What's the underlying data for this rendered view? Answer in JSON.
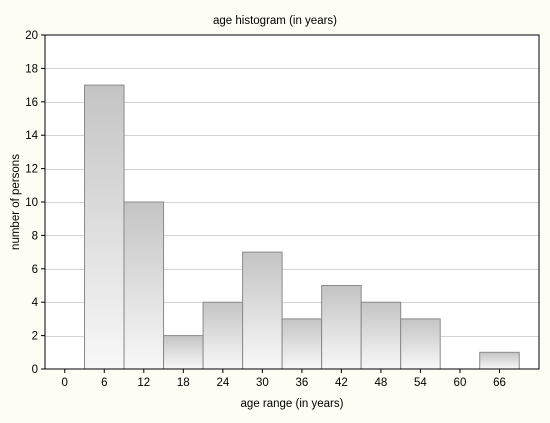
{
  "chart_data": {
    "type": "bar",
    "title": "age histogram (in years)",
    "xlabel": "age range (in years)",
    "ylabel": "number of persons",
    "bins": [
      {
        "start": 0,
        "end": 6
      },
      {
        "start": 6,
        "end": 12
      },
      {
        "start": 12,
        "end": 18
      },
      {
        "start": 18,
        "end": 24
      },
      {
        "start": 24,
        "end": 30
      },
      {
        "start": 30,
        "end": 36
      },
      {
        "start": 36,
        "end": 42
      },
      {
        "start": 42,
        "end": 48
      },
      {
        "start": 48,
        "end": 54
      },
      {
        "start": 54,
        "end": 60
      },
      {
        "start": 60,
        "end": 66
      }
    ],
    "values": [
      17,
      10,
      2,
      4,
      7,
      3,
      5,
      4,
      3,
      0,
      1
    ],
    "xlim": [
      -3,
      72
    ],
    "ylim": [
      0,
      20
    ],
    "xticks": [
      0,
      6,
      12,
      18,
      24,
      30,
      36,
      42,
      48,
      54,
      60,
      66
    ],
    "yticks": [
      0,
      2,
      4,
      6,
      8,
      10,
      12,
      14,
      16,
      18,
      20
    ],
    "grid": true,
    "colors": {
      "background": "#fdfdf3",
      "plot_background": "#ffffff",
      "bar_fill_top": "#c4c4c4",
      "bar_fill_bottom": "#f8f8f8",
      "bar_stroke": "#8a8a8a",
      "grid": "#d3d3d3"
    }
  }
}
